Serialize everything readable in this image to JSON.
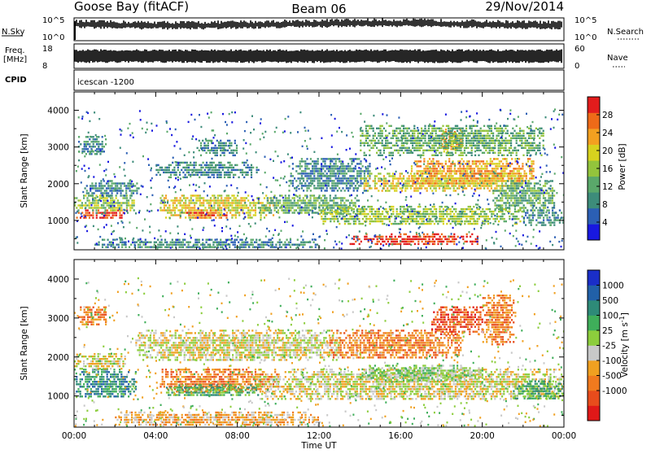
{
  "header": {
    "station": "Goose Bay (fitACF)",
    "beam": "Beam 06",
    "date": "29/Nov/2014"
  },
  "strips": {
    "nsky_label": "N.Sky",
    "nsky_ticks": [
      "10^5",
      "10^0"
    ],
    "nsearch_label": "N.Search",
    "nsearch_ticks": [
      "10^5",
      "10^0"
    ],
    "freq_label": "Freq.",
    "freq_unit": "[MHz]",
    "freq_ticks": [
      "18",
      "8"
    ],
    "nave_label": "Nave",
    "nave_ticks": [
      "60",
      "0"
    ],
    "cpid_label": "CPID",
    "cpid_value": "icescan -1200"
  },
  "chart_data": [
    {
      "type": "heatmap",
      "name": "power",
      "ylabel": "Slant Range [km]",
      "ylim": [
        200,
        4500
      ],
      "yticks": [
        1000,
        2000,
        3000,
        4000
      ],
      "xlim": [
        0,
        24
      ],
      "xticks": [
        "00:00",
        "04:00",
        "08:00",
        "12:00",
        "16:00",
        "20:00",
        "00:00"
      ],
      "colorbar": {
        "label": "Power [dB]",
        "range": [
          0,
          32
        ],
        "ticks": [
          4,
          8,
          12,
          16,
          20,
          24,
          28
        ],
        "colors": [
          "#1818e0",
          "#2b5fb4",
          "#3d8c7a",
          "#5aa86a",
          "#93c43c",
          "#d7d21e",
          "#f3a020",
          "#ee6a18",
          "#e21c1c"
        ]
      },
      "regions": [
        {
          "t": [
            0.1,
            2.6
          ],
          "r": [
            1050,
            1300
          ],
          "v": 30
        },
        {
          "t": [
            0.0,
            3.0
          ],
          "r": [
            1300,
            1700
          ],
          "v": 17
        },
        {
          "t": [
            0.5,
            3.2
          ],
          "r": [
            1700,
            2100
          ],
          "v": 9
        },
        {
          "t": [
            0.2,
            1.6
          ],
          "r": [
            2800,
            3300
          ],
          "v": 7
        },
        {
          "t": [
            4.2,
            9.8
          ],
          "r": [
            1100,
            1700
          ],
          "v": 21
        },
        {
          "t": [
            5.5,
            7.5
          ],
          "r": [
            1050,
            1300
          ],
          "v": 27
        },
        {
          "t": [
            4.0,
            9.0
          ],
          "r": [
            2200,
            2600
          ],
          "v": 9
        },
        {
          "t": [
            6.0,
            8.0
          ],
          "r": [
            2800,
            3200
          ],
          "v": 7
        },
        {
          "t": [
            9.0,
            14.0
          ],
          "r": [
            1200,
            1700
          ],
          "v": 11
        },
        {
          "t": [
            10.5,
            14.5
          ],
          "r": [
            1800,
            2700
          ],
          "v": 8
        },
        {
          "t": [
            12.0,
            22.0
          ],
          "r": [
            900,
            1400
          ],
          "v": 16
        },
        {
          "t": [
            13.5,
            19.8
          ],
          "r": [
            350,
            650
          ],
          "v": 30
        },
        {
          "t": [
            14.0,
            22.0
          ],
          "r": [
            1800,
            2300
          ],
          "v": 20
        },
        {
          "t": [
            16.5,
            22.5
          ],
          "r": [
            2000,
            2700
          ],
          "v": 22
        },
        {
          "t": [
            18.0,
            19.0
          ],
          "r": [
            2900,
            3500
          ],
          "v": 24
        },
        {
          "t": [
            20.5,
            23.5
          ],
          "r": [
            1300,
            2100
          ],
          "v": 13
        },
        {
          "t": [
            22.0,
            24.0
          ],
          "r": [
            900,
            1300
          ],
          "v": 9
        },
        {
          "t": [
            1.0,
            12.0
          ],
          "r": [
            250,
            500
          ],
          "v": 7
        },
        {
          "t": [
            14.0,
            23.0
          ],
          "r": [
            2800,
            3600
          ],
          "v": 10
        }
      ]
    },
    {
      "type": "heatmap",
      "name": "velocity",
      "ylabel": "Slant Range [km]",
      "ylim": [
        200,
        4500
      ],
      "yticks": [
        1000,
        2000,
        3000,
        4000
      ],
      "xlim": [
        0,
        24
      ],
      "xlabel": "Time UT",
      "xticks": [
        "00:00",
        "04:00",
        "08:00",
        "12:00",
        "16:00",
        "20:00",
        "00:00"
      ],
      "colorbar": {
        "label": "Velocity [m s",
        "label_sup": "-1",
        "label_end": "]",
        "ticks": [
          "1000",
          "500",
          "100",
          "25",
          "-25",
          "-100",
          "-500",
          "-1000"
        ],
        "colors": [
          "#1a2ec8",
          "#2160a8",
          "#2e8a78",
          "#3fae5a",
          "#8ccd3c",
          "#c8c8c8",
          "#f0a020",
          "#f07a1e",
          "#e84c1c",
          "#e01818"
        ]
      },
      "regions": [
        {
          "t": [
            0.0,
            3.0
          ],
          "r": [
            1000,
            1700
          ],
          "v": 2
        },
        {
          "t": [
            0.0,
            2.5
          ],
          "r": [
            1700,
            2100
          ],
          "v": 5
        },
        {
          "t": [
            0.2,
            1.6
          ],
          "r": [
            2800,
            3300
          ],
          "v": 7
        },
        {
          "t": [
            4.2,
            10.0
          ],
          "r": [
            1100,
            1700
          ],
          "v": 7
        },
        {
          "t": [
            4.5,
            9.0
          ],
          "r": [
            1000,
            1300
          ],
          "v": 3
        },
        {
          "t": [
            3.0,
            13.0
          ],
          "r": [
            1900,
            2700
          ],
          "v": 5
        },
        {
          "t": [
            9.0,
            24.0
          ],
          "r": [
            900,
            1700
          ],
          "v": 5
        },
        {
          "t": [
            12.5,
            19.0
          ],
          "r": [
            2000,
            2700
          ],
          "v": 7
        },
        {
          "t": [
            17.5,
            20.0
          ],
          "r": [
            2600,
            3300
          ],
          "v": 8
        },
        {
          "t": [
            20.0,
            21.5
          ],
          "r": [
            2300,
            3600
          ],
          "v": 7
        },
        {
          "t": [
            21.5,
            24.0
          ],
          "r": [
            900,
            1400
          ],
          "v": 3
        },
        {
          "t": [
            2.0,
            12.0
          ],
          "r": [
            250,
            600
          ],
          "v": 6
        },
        {
          "t": [
            14.0,
            20.0
          ],
          "r": [
            1400,
            1800
          ],
          "v": 4
        }
      ]
    }
  ]
}
